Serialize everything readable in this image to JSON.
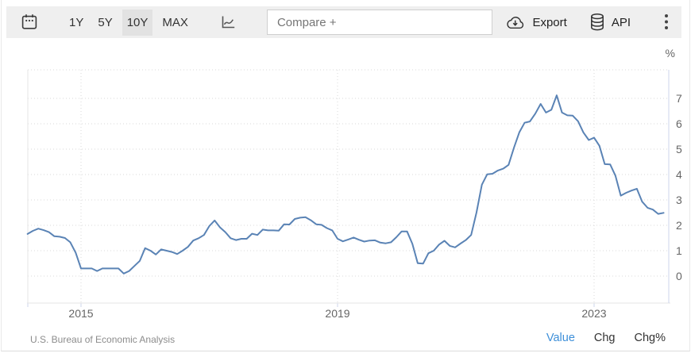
{
  "toolbar": {
    "ranges": [
      {
        "label": "1Y",
        "active": false
      },
      {
        "label": "5Y",
        "active": false
      },
      {
        "label": "10Y",
        "active": true
      },
      {
        "label": "MAX",
        "active": false
      }
    ],
    "compare_placeholder": "Compare +",
    "export_label": "Export",
    "api_label": "API"
  },
  "chart": {
    "unit_label": "%"
  },
  "chart_data": {
    "type": "line",
    "title": "",
    "unit": "%",
    "x_start": "2014-03",
    "frequency": "monthly",
    "grid": "dotted",
    "legend": "none",
    "ylim": [
      -1.06,
      8.13
    ],
    "yticks": [
      {
        "label": "0",
        "value": 0
      },
      {
        "label": "1",
        "value": 1
      },
      {
        "label": "2",
        "value": 2
      },
      {
        "label": "3",
        "value": 3
      },
      {
        "label": "4",
        "value": 4
      },
      {
        "label": "5",
        "value": 5
      },
      {
        "label": "6",
        "value": 6
      },
      {
        "label": "7",
        "value": 7
      }
    ],
    "xticks": [
      {
        "label": "2015",
        "year": 2015
      },
      {
        "label": "2019",
        "year": 2019
      },
      {
        "label": "2023",
        "year": 2023
      }
    ],
    "series": [
      {
        "name": "Value",
        "color": "#5a83b5",
        "values": [
          1.66,
          1.78,
          1.87,
          1.81,
          1.73,
          1.57,
          1.55,
          1.5,
          1.33,
          0.92,
          0.3,
          0.3,
          0.3,
          0.2,
          0.3,
          0.3,
          0.3,
          0.3,
          0.1,
          0.2,
          0.4,
          0.6,
          1.1,
          1.0,
          0.85,
          1.05,
          1.0,
          0.95,
          0.87,
          1.0,
          1.15,
          1.4,
          1.49,
          1.62,
          1.97,
          2.19,
          1.92,
          1.73,
          1.49,
          1.42,
          1.47,
          1.47,
          1.67,
          1.62,
          1.83,
          1.8,
          1.8,
          1.79,
          2.04,
          2.03,
          2.25,
          2.3,
          2.32,
          2.2,
          2.04,
          2.02,
          1.89,
          1.8,
          1.47,
          1.37,
          1.44,
          1.52,
          1.43,
          1.36,
          1.4,
          1.41,
          1.32,
          1.29,
          1.33,
          1.53,
          1.76,
          1.76,
          1.27,
          0.51,
          0.49,
          0.9,
          1.0,
          1.24,
          1.39,
          1.19,
          1.13,
          1.28,
          1.42,
          1.62,
          2.5,
          3.6,
          4.01,
          4.03,
          4.16,
          4.23,
          4.38,
          5.05,
          5.66,
          6.04,
          6.09,
          6.4,
          6.78,
          6.44,
          6.55,
          7.12,
          6.44,
          6.33,
          6.32,
          6.1,
          5.66,
          5.36,
          5.45,
          5.13,
          4.41,
          4.4,
          3.95,
          3.17,
          3.28,
          3.37,
          3.44,
          2.93,
          2.69,
          2.62,
          2.45,
          2.49
        ]
      }
    ],
    "source": "U.S. Bureau of Economic Analysis"
  },
  "footer": {
    "source": "U.S. Bureau of Economic Analysis",
    "links": [
      {
        "label": "Value",
        "active": true
      },
      {
        "label": "Chg",
        "active": false
      },
      {
        "label": "Chg%",
        "active": false
      }
    ]
  }
}
